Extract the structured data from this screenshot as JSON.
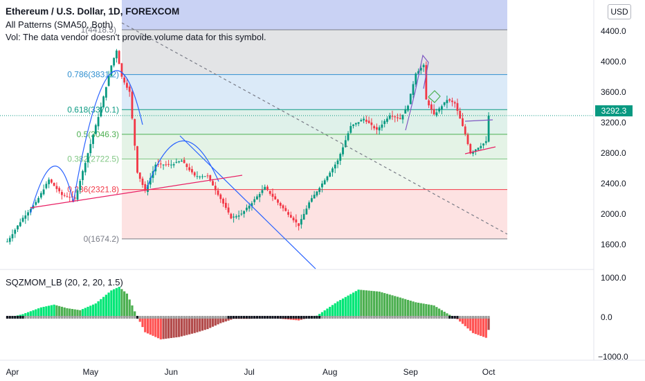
{
  "header": {
    "title": "Ethereum / U.S. Dollar, 1D, FOREXCOM",
    "patterns": "All Patterns (SMA50, Both)",
    "vol": "Vol: The data vendor doesn't provide volume data for this symbol."
  },
  "toolbar": {
    "currency_button": "USD"
  },
  "price_axis": {
    "ticks": [
      "4400.0",
      "4000.0",
      "3600.0",
      "3200.0",
      "2800.0",
      "2400.0",
      "2000.0",
      "1600.0"
    ]
  },
  "current_price": {
    "label": "3292.3",
    "value": 3292.3
  },
  "fibonacci": {
    "top_label": "1(4418.5)",
    "levels": [
      {
        "label": "0.786(3831.2)",
        "value": 3831.2,
        "color": "#2f8fd0"
      },
      {
        "label": "0.618(3370.1)",
        "value": 3370.1,
        "color": "#089981"
      },
      {
        "label": "0.5(3046.3)",
        "value": 3046.3,
        "color": "#4caf50"
      },
      {
        "label": "0.382(2722.5)",
        "value": 2722.5,
        "color": "#81c784"
      },
      {
        "label": "0.236(2321.8)",
        "value": 2321.8,
        "color": "#f23645"
      },
      {
        "label": "0(1674.2)",
        "value": 1674.2,
        "color": "#787b86"
      }
    ],
    "top_value": 4418.5
  },
  "oscillator": {
    "label": "SQZMOM_LB (20, 2, 20, 1.5)",
    "ticks": [
      "1000.0",
      "0.0",
      "−1000.0"
    ]
  },
  "time_axis": {
    "months": [
      "Apr",
      "May",
      "Jun",
      "Jul",
      "Aug",
      "Sep",
      "Oct"
    ]
  },
  "colors": {
    "up": "#089981",
    "down": "#f23645",
    "osc_up_strong": "#00e676",
    "osc_up_weak": "#4caf50",
    "osc_down_strong": "#ff5252",
    "osc_down_weak": "#b24a4a"
  },
  "chart_data": {
    "type": "candlestick",
    "title": "Ethereum / U.S. Dollar, 1D, FOREXCOM",
    "ylim": [
      1500,
      4500
    ],
    "price_path": [
      [
        "2021-03-30",
        1640
      ],
      [
        "2021-04-05",
        1950
      ],
      [
        "2021-04-10",
        2150
      ],
      [
        "2021-04-15",
        2450
      ],
      [
        "2021-04-20",
        2250
      ],
      [
        "2021-04-25",
        2200
      ],
      [
        "2021-04-30",
        2800
      ],
      [
        "2021-05-05",
        3400
      ],
      [
        "2021-05-09",
        3950
      ],
      [
        "2021-05-11",
        4150
      ],
      [
        "2021-05-13",
        3800
      ],
      [
        "2021-05-16",
        3600
      ],
      [
        "2021-05-19",
        2550
      ],
      [
        "2021-05-22",
        2300
      ],
      [
        "2021-05-26",
        2650
      ],
      [
        "2021-06-01",
        2650
      ],
      [
        "2021-06-05",
        2700
      ],
      [
        "2021-06-10",
        2500
      ],
      [
        "2021-06-15",
        2500
      ],
      [
        "2021-06-20",
        2200
      ],
      [
        "2021-06-24",
        1950
      ],
      [
        "2021-06-28",
        2000
      ],
      [
        "2021-07-02",
        2150
      ],
      [
        "2021-07-07",
        2350
      ],
      [
        "2021-07-12",
        2150
      ],
      [
        "2021-07-20",
        1850
      ],
      [
        "2021-07-24",
        2150
      ],
      [
        "2021-07-29",
        2400
      ],
      [
        "2021-08-04",
        2700
      ],
      [
        "2021-08-09",
        3150
      ],
      [
        "2021-08-14",
        3250
      ],
      [
        "2021-08-19",
        3100
      ],
      [
        "2021-08-24",
        3300
      ],
      [
        "2021-08-28",
        3250
      ],
      [
        "2021-08-31",
        3430
      ],
      [
        "2021-09-03",
        3850
      ],
      [
        "2021-09-06",
        3950
      ],
      [
        "2021-09-07",
        3500
      ],
      [
        "2021-09-10",
        3300
      ],
      [
        "2021-09-15",
        3500
      ],
      [
        "2021-09-18",
        3450
      ],
      [
        "2021-09-22",
        3050
      ],
      [
        "2021-09-24",
        2800
      ],
      [
        "2021-09-28",
        2900
      ],
      [
        "2021-09-30",
        2950
      ],
      [
        "2021-10-01",
        3292.3
      ]
    ],
    "oscillator_path": [
      [
        "2021-03-30",
        -20
      ],
      [
        "2021-04-05",
        80
      ],
      [
        "2021-04-12",
        250
      ],
      [
        "2021-04-17",
        320
      ],
      [
        "2021-04-22",
        230
      ],
      [
        "2021-04-27",
        180
      ],
      [
        "2021-05-03",
        350
      ],
      [
        "2021-05-09",
        680
      ],
      [
        "2021-05-12",
        770
      ],
      [
        "2021-05-15",
        600
      ],
      [
        "2021-05-18",
        150
      ],
      [
        "2021-05-22",
        -380
      ],
      [
        "2021-05-28",
        -560
      ],
      [
        "2021-06-04",
        -500
      ],
      [
        "2021-06-10",
        -400
      ],
      [
        "2021-06-15",
        -300
      ],
      [
        "2021-06-20",
        -150
      ],
      [
        "2021-06-25",
        -40
      ],
      [
        "2021-07-01",
        -40
      ],
      [
        "2021-07-10",
        -20
      ],
      [
        "2021-07-20",
        -80
      ],
      [
        "2021-07-27",
        40
      ],
      [
        "2021-08-04",
        400
      ],
      [
        "2021-08-12",
        700
      ],
      [
        "2021-08-20",
        650
      ],
      [
        "2021-08-28",
        500
      ],
      [
        "2021-09-03",
        380
      ],
      [
        "2021-09-10",
        300
      ],
      [
        "2021-09-15",
        100
      ],
      [
        "2021-09-19",
        -50
      ],
      [
        "2021-09-25",
        -400
      ],
      [
        "2021-09-30",
        -520
      ],
      [
        "2021-10-01",
        -320
      ]
    ],
    "oscillator_ylim": [
      -1100,
      1200
    ]
  }
}
